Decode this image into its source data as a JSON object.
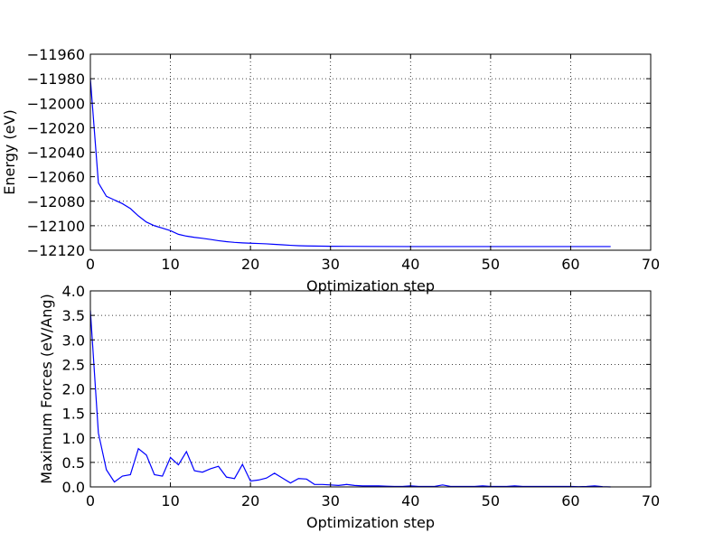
{
  "chart_data": [
    {
      "type": "line",
      "title": "",
      "xlabel": "Optimization step",
      "ylabel": "Energy (eV)",
      "xlim": [
        0,
        70
      ],
      "ylim": [
        -12120,
        -11960
      ],
      "xticks": [
        0,
        10,
        20,
        30,
        40,
        50,
        60,
        70
      ],
      "xtick_labels": [
        "0",
        "10",
        "20",
        "30",
        "40",
        "50",
        "60",
        "70"
      ],
      "yticks": [
        -11960,
        -11980,
        -12000,
        -12020,
        -12040,
        -12060,
        -12080,
        -12100,
        -12120
      ],
      "ytick_labels": [
        "−11960",
        "−11980",
        "−12000",
        "−12020",
        "−12040",
        "−12060",
        "−12080",
        "−12100",
        "−12120"
      ],
      "grid": true,
      "color": "#0000ff",
      "x": [
        0,
        1,
        2,
        3,
        4,
        5,
        6,
        7,
        8,
        9,
        10,
        11,
        12,
        13,
        14,
        15,
        16,
        17,
        18,
        19,
        20,
        21,
        22,
        23,
        24,
        25,
        26,
        27,
        28,
        29,
        30,
        35,
        40,
        45,
        50,
        55,
        60,
        65
      ],
      "y": [
        -11980,
        -12065,
        -12076,
        -12079,
        -12082,
        -12086,
        -12092,
        -12097,
        -12100,
        -12102,
        -12104,
        -12107,
        -12108.5,
        -12109.5,
        -12110.3,
        -12111.2,
        -12112.2,
        -12113,
        -12113.6,
        -12114,
        -12114.3,
        -12114.5,
        -12114.8,
        -12115.2,
        -12115.6,
        -12116,
        -12116.3,
        -12116.5,
        -12116.6,
        -12116.7,
        -12116.8,
        -12116.9,
        -12117,
        -12117,
        -12117,
        -12117,
        -12117,
        -12117
      ]
    },
    {
      "type": "line",
      "title": "",
      "xlabel": "Optimization step",
      "ylabel": "Maximum Forces (eV/Ang)",
      "xlim": [
        0,
        70
      ],
      "ylim": [
        0,
        4
      ],
      "xticks": [
        0,
        10,
        20,
        30,
        40,
        50,
        60,
        70
      ],
      "xtick_labels": [
        "0",
        "10",
        "20",
        "30",
        "40",
        "50",
        "60",
        "70"
      ],
      "yticks": [
        0,
        0.5,
        1,
        1.5,
        2,
        2.5,
        3,
        3.5,
        4
      ],
      "ytick_labels": [
        "0.0",
        "0.5",
        "1.0",
        "1.5",
        "2.0",
        "2.5",
        "3.0",
        "3.5",
        "4.0"
      ],
      "grid": true,
      "color": "#0000ff",
      "x": [
        0,
        1,
        2,
        3,
        4,
        5,
        6,
        7,
        8,
        9,
        10,
        11,
        12,
        13,
        14,
        15,
        16,
        17,
        18,
        19,
        20,
        21,
        22,
        23,
        24,
        25,
        26,
        27,
        28,
        29,
        30,
        31,
        32,
        33,
        34,
        35,
        36,
        37,
        38,
        39,
        40,
        41,
        42,
        43,
        44,
        45,
        46,
        47,
        48,
        49,
        50,
        51,
        52,
        53,
        54,
        55,
        56,
        57,
        58,
        59,
        60,
        61,
        62,
        63,
        64,
        65
      ],
      "y": [
        3.6,
        1.1,
        0.35,
        0.1,
        0.22,
        0.25,
        0.78,
        0.65,
        0.25,
        0.22,
        0.6,
        0.45,
        0.72,
        0.33,
        0.3,
        0.37,
        0.42,
        0.2,
        0.17,
        0.46,
        0.12,
        0.14,
        0.18,
        0.28,
        0.18,
        0.08,
        0.17,
        0.16,
        0.05,
        0.05,
        0.04,
        0.03,
        0.05,
        0.03,
        0.02,
        0.02,
        0.02,
        0.015,
        0.01,
        0.01,
        0.02,
        0.01,
        0.01,
        0.01,
        0.04,
        0.01,
        0.01,
        0.01,
        0.01,
        0.02,
        0.01,
        0.01,
        0.01,
        0.02,
        0.01,
        0.01,
        0.01,
        0.01,
        0.01,
        0.01,
        0.01,
        0.005,
        0.01,
        0.02,
        0.005,
        0.0
      ]
    }
  ]
}
